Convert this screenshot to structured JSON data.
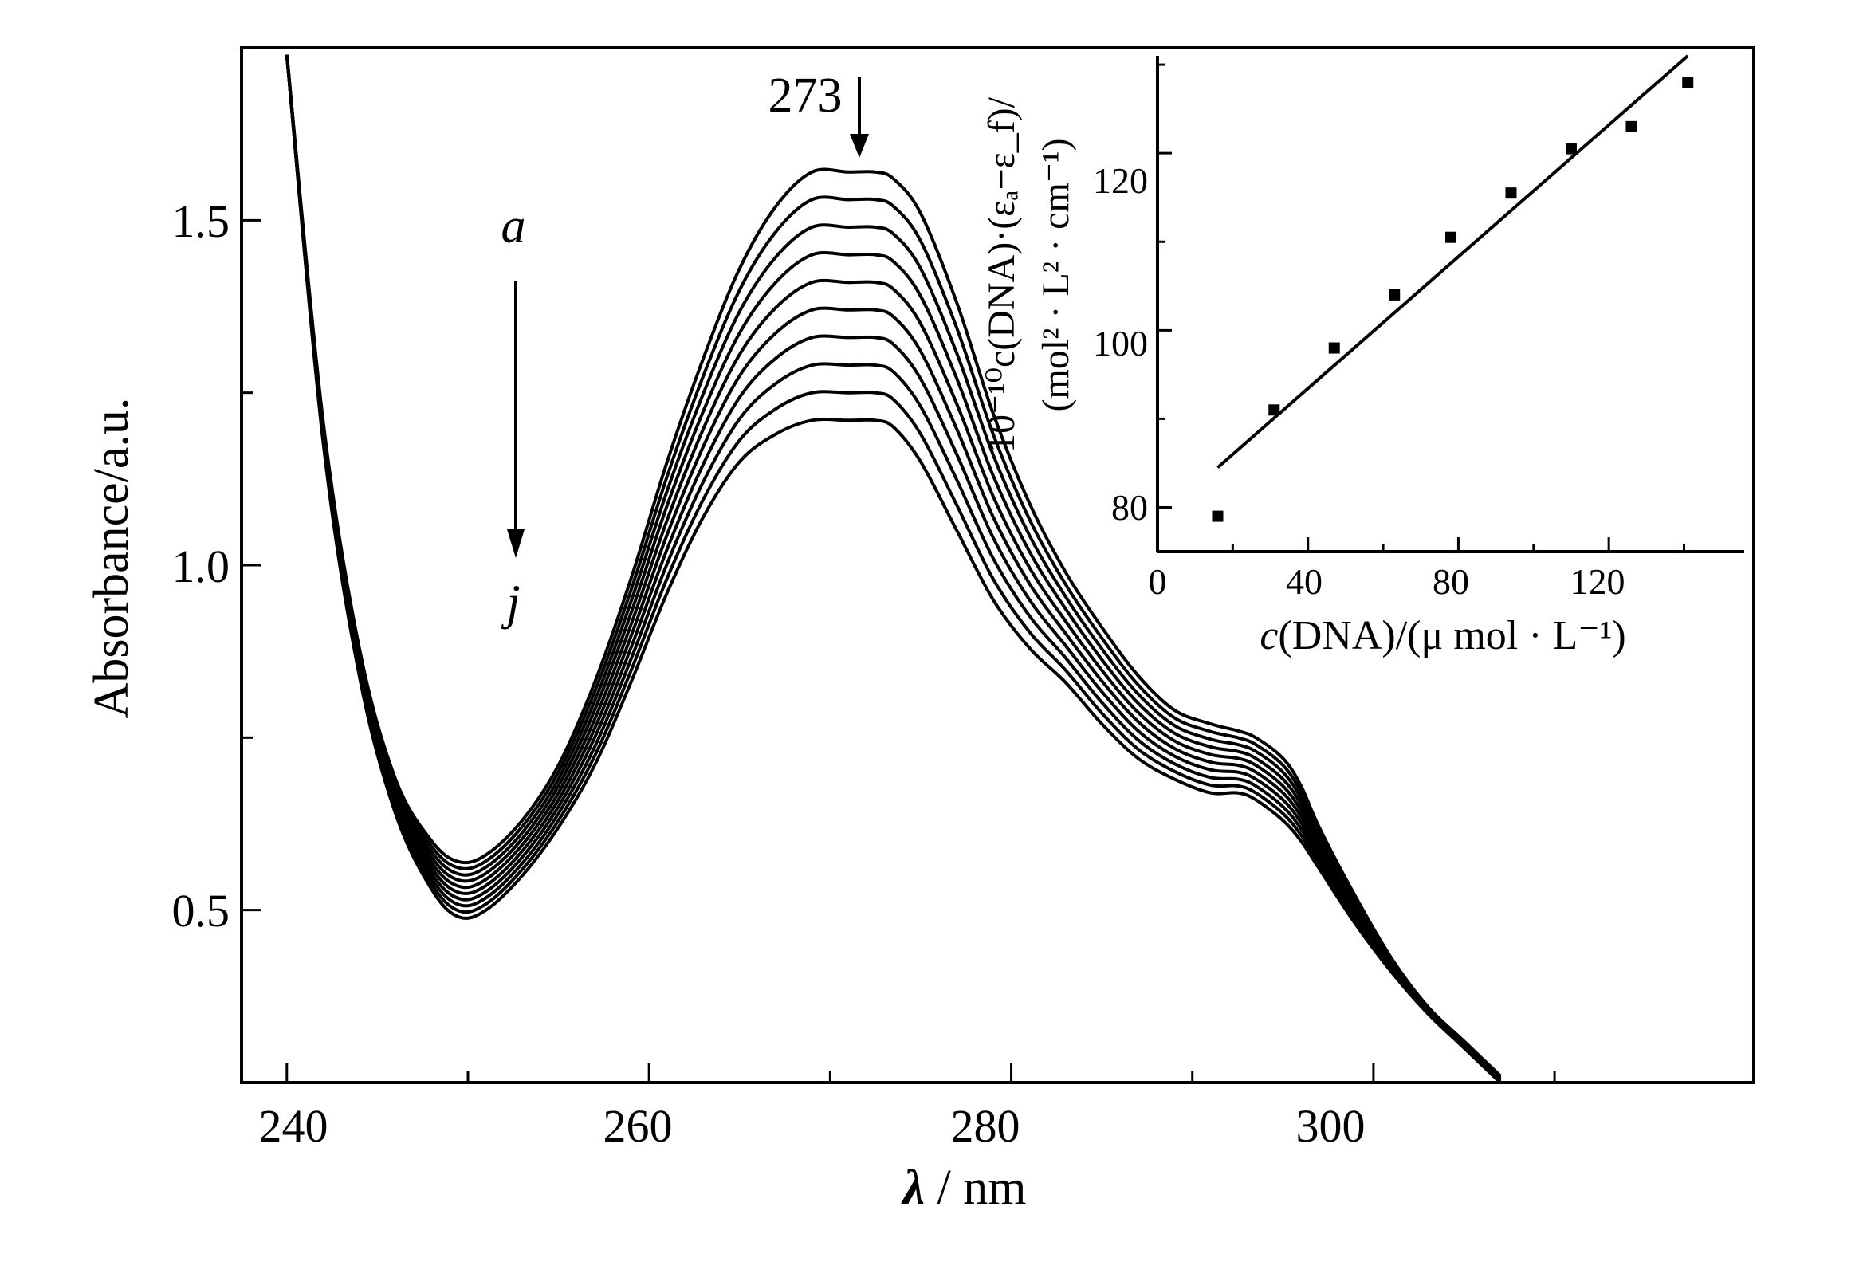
{
  "chart_data": [
    {
      "type": "line",
      "xlabel_var": "λ",
      "xlabel_unit": " / nm",
      "ylabel": "Absorbance/a.u.",
      "xlim": [
        237.5,
        321
      ],
      "ylim": [
        0.25,
        1.75
      ],
      "x_ticks": [
        "240",
        "260",
        "280",
        "300"
      ],
      "y_ticks": [
        "0.5",
        "1.0",
        "1.5"
      ],
      "peak_label": "273",
      "series_start_label": "a",
      "series_end_label": "j",
      "series_count": 10,
      "x": [
        240,
        242,
        244,
        246,
        248,
        249.5,
        251,
        253,
        255,
        257,
        259,
        261,
        263,
        265,
        267,
        269,
        271,
        272.5,
        273.5,
        275,
        277,
        279,
        281,
        283,
        285,
        287,
        289,
        291,
        292.5,
        293.5,
        295,
        296,
        297,
        299,
        301,
        303,
        305,
        307
      ],
      "series_top": [
        1.74,
        1.21,
        0.88,
        0.69,
        0.6,
        0.57,
        0.58,
        0.63,
        0.71,
        0.83,
        0.98,
        1.15,
        1.3,
        1.43,
        1.52,
        1.57,
        1.57,
        1.57,
        1.56,
        1.51,
        1.38,
        1.22,
        1.09,
        0.99,
        0.91,
        0.84,
        0.79,
        0.77,
        0.76,
        0.75,
        0.72,
        0.68,
        0.62,
        0.52,
        0.43,
        0.36,
        0.31,
        0.26
      ],
      "series_bottom": [
        1.74,
        1.18,
        0.84,
        0.64,
        0.53,
        0.49,
        0.5,
        0.55,
        0.62,
        0.71,
        0.83,
        0.96,
        1.07,
        1.15,
        1.19,
        1.21,
        1.21,
        1.21,
        1.2,
        1.15,
        1.05,
        0.95,
        0.88,
        0.83,
        0.77,
        0.72,
        0.69,
        0.67,
        0.67,
        0.66,
        0.63,
        0.6,
        0.56,
        0.48,
        0.41,
        0.35,
        0.3,
        0.25
      ]
    },
    {
      "type": "scatter",
      "xlabel_var": "c",
      "xlabel_rest": "(DNA)/(μ mol · L⁻¹)",
      "ylabel_line1": "10⁻¹⁰c(DNA)·(εₐ−ε_f)/",
      "ylabel_line2": "(mol² · L² · cm⁻¹)",
      "xlim": [
        0,
        156
      ],
      "ylim": [
        75,
        131
      ],
      "x_ticks": [
        "0",
        "40",
        "80",
        "120"
      ],
      "y_ticks": [
        "80",
        "100",
        "120"
      ],
      "points": [
        {
          "x": 16,
          "y": 79
        },
        {
          "x": 31,
          "y": 91
        },
        {
          "x": 47,
          "y": 98
        },
        {
          "x": 63,
          "y": 104
        },
        {
          "x": 78,
          "y": 110.5
        },
        {
          "x": 94,
          "y": 115.5
        },
        {
          "x": 110,
          "y": 120.5
        },
        {
          "x": 126,
          "y": 123
        },
        {
          "x": 141,
          "y": 128
        }
      ],
      "fit": {
        "x": [
          16,
          141
        ],
        "y": [
          84.5,
          131
        ]
      }
    }
  ]
}
